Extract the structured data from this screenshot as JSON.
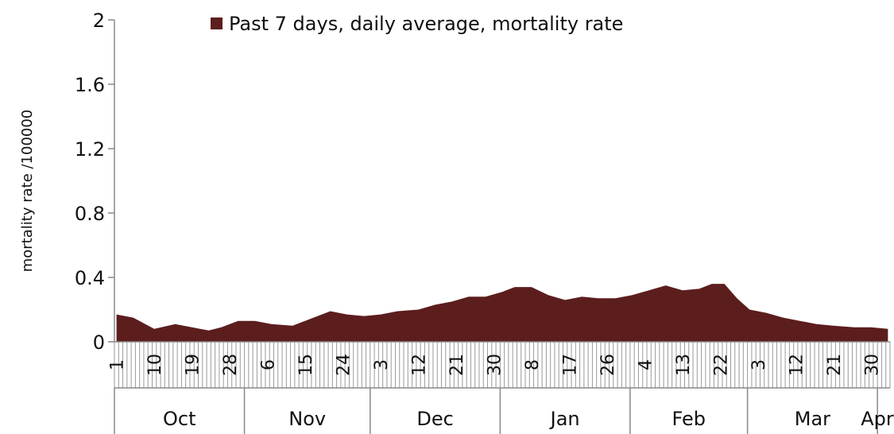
{
  "chart_data": {
    "type": "area",
    "title": "",
    "legend": {
      "position": "top-center",
      "label": "Past 7 days, daily average, mortality rate"
    },
    "xlabel": "",
    "ylabel": "mortality rate /100000",
    "ylim": [
      0,
      2
    ],
    "yticks": [
      "0",
      "0.4",
      "0.8",
      "1.2",
      "1.6",
      "2"
    ],
    "grid": false,
    "color": "#5c1d1d",
    "x_start_day": 1,
    "x_end_day": 185,
    "day_tick_labels": [
      {
        "day": 1,
        "label": "1"
      },
      {
        "day": 10,
        "label": "10"
      },
      {
        "day": 19,
        "label": "19"
      },
      {
        "day": 28,
        "label": "28"
      },
      {
        "day": 37,
        "label": "6"
      },
      {
        "day": 46,
        "label": "15"
      },
      {
        "day": 55,
        "label": "24"
      },
      {
        "day": 64,
        "label": "3"
      },
      {
        "day": 73,
        "label": "12"
      },
      {
        "day": 82,
        "label": "21"
      },
      {
        "day": 91,
        "label": "30"
      },
      {
        "day": 100,
        "label": "8"
      },
      {
        "day": 109,
        "label": "17"
      },
      {
        "day": 118,
        "label": "26"
      },
      {
        "day": 127,
        "label": "4"
      },
      {
        "day": 136,
        "label": "13"
      },
      {
        "day": 145,
        "label": "22"
      },
      {
        "day": 154,
        "label": "3"
      },
      {
        "day": 163,
        "label": "12"
      },
      {
        "day": 172,
        "label": "21"
      },
      {
        "day": 181,
        "label": "30"
      }
    ],
    "months": [
      {
        "label": "Oct",
        "start": 1,
        "end": 31
      },
      {
        "label": "Nov",
        "start": 32,
        "end": 61
      },
      {
        "label": "Dec",
        "start": 62,
        "end": 92
      },
      {
        "label": "Jan",
        "start": 93,
        "end": 123
      },
      {
        "label": "Feb",
        "start": 124,
        "end": 151
      },
      {
        "label": "Mar",
        "start": 152,
        "end": 182
      },
      {
        "label": "Apr",
        "start": 183,
        "end": 185
      }
    ],
    "series": [
      {
        "name": "Past 7 days, daily average, mortality rate",
        "x": [
          1,
          5,
          10,
          15,
          19,
          23,
          26,
          30,
          34,
          38,
          43,
          47,
          52,
          56,
          60,
          64,
          68,
          73,
          77,
          81,
          85,
          89,
          93,
          96,
          100,
          104,
          108,
          112,
          116,
          120,
          124,
          128,
          132,
          136,
          140,
          143,
          146,
          149,
          152,
          156,
          160,
          164,
          168,
          172,
          177,
          181,
          185
        ],
        "y": [
          0.17,
          0.15,
          0.08,
          0.11,
          0.09,
          0.07,
          0.09,
          0.13,
          0.13,
          0.11,
          0.1,
          0.14,
          0.19,
          0.17,
          0.16,
          0.17,
          0.19,
          0.2,
          0.23,
          0.25,
          0.28,
          0.28,
          0.31,
          0.34,
          0.34,
          0.29,
          0.26,
          0.28,
          0.27,
          0.27,
          0.29,
          0.32,
          0.35,
          0.32,
          0.33,
          0.36,
          0.36,
          0.27,
          0.2,
          0.18,
          0.15,
          0.13,
          0.11,
          0.1,
          0.09,
          0.09,
          0.08
        ]
      }
    ]
  }
}
